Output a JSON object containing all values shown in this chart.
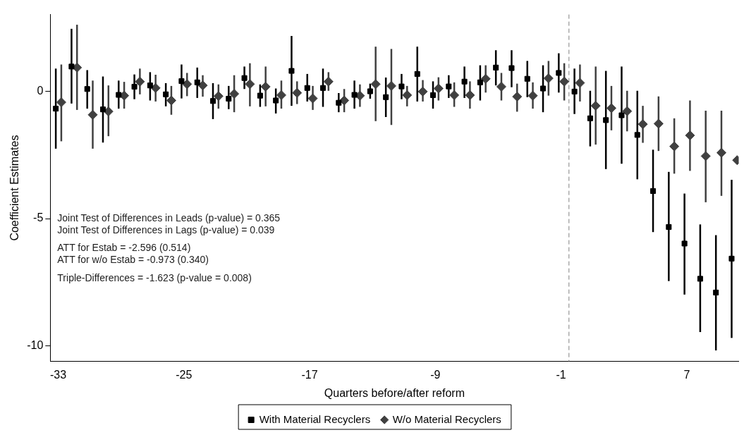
{
  "chart_data": {
    "type": "scatter",
    "xlabel": "Quarters before/after reform",
    "ylabel": "Coefficient Estimates",
    "xlim": [
      -33.5,
      10.3
    ],
    "xticks": [
      -33,
      -25,
      -17,
      -9,
      -1,
      7
    ],
    "ylim": [
      -10.6,
      3
    ],
    "yticks": [
      -10,
      -5,
      0
    ],
    "grid": false,
    "legend": "bottom",
    "ref_lines": [
      {
        "axis": "x",
        "value": -0.5,
        "color": "#808080",
        "line_style": "dashed"
      }
    ],
    "annotations": [
      "Joint Test of Differences in Leads (p-value) = 0.365",
      "Joint Test of Differences in Lags (p-value) = 0.039",
      "ATT for Estab = -2.596 (0.514)",
      "ATT for w/o Estab = -0.973 (0.340)",
      "Triple-Differences = -1.623 (p-value = 0.008)"
    ],
    "series": [
      {
        "name": "With Material Recyclers",
        "color": "#000000",
        "marker": "square",
        "x": [
          -33.15,
          -32.15,
          -31.15,
          -30.15,
          -29.15,
          -28.15,
          -27.15,
          -26.15,
          -25.15,
          -24.15,
          -23.15,
          -22.15,
          -21.15,
          -20.15,
          -19.15,
          -18.15,
          -17.15,
          -16.15,
          -15.15,
          -14.15,
          -13.15,
          -12.15,
          -11.15,
          -10.15,
          -9.15,
          -8.15,
          -7.15,
          -6.15,
          -5.15,
          -4.15,
          -3.15,
          -2.15,
          -1.15,
          -0.15,
          0.85,
          1.85,
          2.85,
          3.85,
          4.85,
          5.85,
          6.85,
          7.85,
          8.85,
          9.85
        ],
        "values": [
          -0.69,
          0.96,
          0.08,
          -0.72,
          -0.15,
          0.17,
          0.22,
          -0.13,
          0.39,
          0.34,
          -0.39,
          -0.3,
          0.51,
          -0.18,
          -0.37,
          0.79,
          0.12,
          0.12,
          -0.46,
          -0.15,
          -0.01,
          -0.24,
          0.18,
          0.67,
          -0.16,
          0.18,
          0.37,
          0.34,
          0.92,
          0.9,
          0.48,
          0.1,
          0.71,
          -0.02,
          -1.07,
          -1.14,
          -0.95,
          -1.72,
          -3.92,
          -5.33,
          -5.98,
          -7.36,
          -7.9,
          -6.57
        ],
        "errors": [
          [
            -2.26,
            0.88
          ],
          [
            -0.49,
            2.44
          ],
          [
            -0.69,
            0.82
          ],
          [
            -2.02,
            0.57
          ],
          [
            -0.69,
            0.41
          ],
          [
            -0.32,
            0.65
          ],
          [
            -0.37,
            0.74
          ],
          [
            -0.6,
            0.31
          ],
          [
            -0.29,
            1.04
          ],
          [
            -0.27,
            0.92
          ],
          [
            -1.1,
            0.31
          ],
          [
            -0.71,
            0.2
          ],
          [
            0.08,
            0.96
          ],
          [
            -0.62,
            0.26
          ],
          [
            -0.88,
            0.1
          ],
          [
            -0.58,
            2.16
          ],
          [
            -0.41,
            0.67
          ],
          [
            -0.62,
            0.88
          ],
          [
            -0.83,
            -0.08
          ],
          [
            -0.69,
            0.41
          ],
          [
            -0.3,
            0.29
          ],
          [
            -1.02,
            0.53
          ],
          [
            -0.32,
            0.67
          ],
          [
            -0.41,
            1.74
          ],
          [
            -0.69,
            0.38
          ],
          [
            -0.27,
            0.62
          ],
          [
            -0.27,
            0.96
          ],
          [
            -0.37,
            1.01
          ],
          [
            0.22,
            1.6
          ],
          [
            0.15,
            1.6
          ],
          [
            -0.24,
            1.18
          ],
          [
            -0.83,
            1.01
          ],
          [
            -0.06,
            1.48
          ],
          [
            -0.9,
            0.88
          ],
          [
            -2.17,
            0.01
          ],
          [
            -3.06,
            0.79
          ],
          [
            -2.85,
            0.96
          ],
          [
            -3.46,
            0.01
          ],
          [
            -5.53,
            -2.3
          ],
          [
            -7.45,
            -3.17
          ],
          [
            -7.98,
            -4.02
          ],
          [
            -9.45,
            -5.23
          ],
          [
            -10.17,
            -5.65
          ],
          [
            -9.68,
            -3.48
          ]
        ]
      },
      {
        "name": "W/o Material Recyclers",
        "color": "#404040",
        "marker": "diamond",
        "x": [
          -32.8,
          -31.8,
          -30.8,
          -29.8,
          -28.8,
          -27.8,
          -26.8,
          -25.8,
          -24.8,
          -23.8,
          -22.8,
          -21.8,
          -20.8,
          -19.8,
          -18.8,
          -17.8,
          -16.8,
          -15.8,
          -14.8,
          -13.8,
          -12.8,
          -11.8,
          -10.8,
          -9.8,
          -8.8,
          -7.8,
          -6.8,
          -5.8,
          -4.8,
          -3.8,
          -2.8,
          -1.8,
          -0.8,
          0.2,
          1.2,
          2.2,
          3.2,
          4.2,
          5.2,
          6.2,
          7.2,
          8.2,
          9.2,
          10.2
        ],
        "values": [
          -0.44,
          0.92,
          -0.93,
          -0.8,
          -0.18,
          0.37,
          0.12,
          -0.37,
          0.27,
          0.22,
          -0.2,
          -0.11,
          0.27,
          0.17,
          -0.16,
          -0.07,
          -0.29,
          0.37,
          -0.37,
          -0.18,
          0.27,
          0.2,
          -0.16,
          -0.02,
          0.1,
          -0.16,
          -0.16,
          0.48,
          0.17,
          -0.22,
          -0.18,
          0.5,
          0.37,
          0.32,
          -0.58,
          -0.67,
          -0.79,
          -1.3,
          -1.28,
          -2.17,
          -1.74,
          -2.55,
          -2.42,
          -2.71
        ],
        "errors": [
          [
            -1.97,
            1.04
          ],
          [
            -0.74,
            2.6
          ],
          [
            -2.26,
            0.41
          ],
          [
            -1.77,
            0.22
          ],
          [
            -0.69,
            0.36
          ],
          [
            -0.13,
            0.88
          ],
          [
            -0.41,
            0.64
          ],
          [
            -0.93,
            0.2
          ],
          [
            -0.2,
            0.71
          ],
          [
            -0.22,
            0.62
          ],
          [
            -0.69,
            0.26
          ],
          [
            -0.83,
            0.62
          ],
          [
            -0.6,
            1.09
          ],
          [
            -0.6,
            0.96
          ],
          [
            -0.69,
            0.41
          ],
          [
            -0.51,
            0.38
          ],
          [
            -0.74,
            0.2
          ],
          [
            0.01,
            0.74
          ],
          [
            -0.83,
            0.08
          ],
          [
            -0.62,
            0.26
          ],
          [
            -1.18,
            1.74
          ],
          [
            -1.33,
            1.65
          ],
          [
            -0.6,
            0.2
          ],
          [
            -0.41,
            0.43
          ],
          [
            -0.37,
            0.54
          ],
          [
            -0.62,
            0.34
          ],
          [
            -0.69,
            0.38
          ],
          [
            -0.06,
            1.01
          ],
          [
            -0.37,
            0.71
          ],
          [
            -0.81,
            0.29
          ],
          [
            -0.69,
            0.34
          ],
          [
            -0.18,
            1.18
          ],
          [
            -0.37,
            1.09
          ],
          [
            -0.41,
            1.04
          ],
          [
            -2.1,
            0.96
          ],
          [
            -1.54,
            0.2
          ],
          [
            -1.58,
            0.01
          ],
          [
            -2.03,
            -0.58
          ],
          [
            -2.35,
            -0.21
          ],
          [
            -3.24,
            -1.07
          ],
          [
            -3.13,
            -0.37
          ],
          [
            -4.36,
            -0.77
          ],
          [
            -4.11,
            -0.77
          ],
          null
        ]
      }
    ]
  }
}
